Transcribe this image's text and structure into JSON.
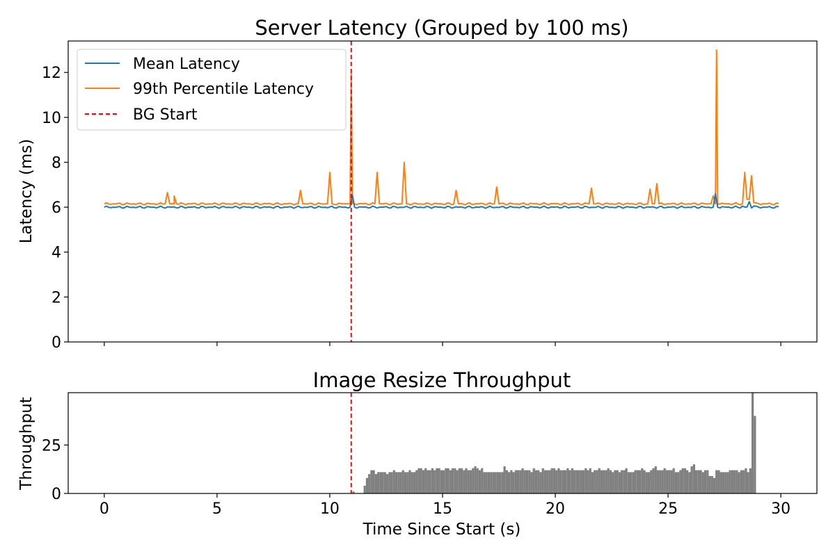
{
  "chart_data": [
    {
      "type": "line",
      "title": "Server Latency (Grouped by 100 ms)",
      "xlabel": "",
      "ylabel": "Latency (ms)",
      "xlim": [
        -1.6,
        31.6
      ],
      "ylim": [
        0,
        13.4
      ],
      "x_ticks": [
        0,
        5,
        10,
        15,
        20,
        25,
        30
      ],
      "y_ticks": [
        0,
        2,
        4,
        6,
        8,
        10,
        12
      ],
      "y_tick_labels": [
        "0",
        "2",
        "4",
        "6",
        "8",
        "10",
        "12"
      ],
      "legend": {
        "position": "top-left",
        "entries": [
          "Mean Latency",
          "99th Percentile Latency",
          "BG Start"
        ]
      },
      "grid": false,
      "colors": {
        "mean": "#1f77b4",
        "p99": "#ff7f0e",
        "bg_start": "#ff0000"
      },
      "x_step": 0.1,
      "x_end": 29.9,
      "series": [
        {
          "name": "Mean Latency",
          "baseline": 6.0,
          "points": [
            [
              10.9,
              6.0
            ],
            [
              11.0,
              6.55
            ],
            [
              11.1,
              6.0
            ],
            [
              27.0,
              6.0
            ],
            [
              27.1,
              6.6
            ],
            [
              27.2,
              6.0
            ],
            [
              28.3,
              6.05
            ],
            [
              28.6,
              6.25
            ],
            [
              28.8,
              6.05
            ]
          ]
        },
        {
          "name": "99th Percentile Latency",
          "baseline": 6.15,
          "points": [
            [
              2.7,
              6.15
            ],
            [
              2.8,
              6.65
            ],
            [
              2.9,
              6.15
            ],
            [
              3.1,
              6.15
            ],
            [
              3.1,
              6.5
            ],
            [
              3.2,
              6.15
            ],
            [
              8.6,
              6.15
            ],
            [
              8.7,
              6.75
            ],
            [
              8.8,
              6.15
            ],
            [
              9.9,
              6.15
            ],
            [
              10.0,
              7.55
            ],
            [
              10.1,
              6.15
            ],
            [
              10.8,
              6.15
            ],
            [
              10.95,
              12.0
            ],
            [
              11.1,
              6.15
            ],
            [
              12.0,
              6.15
            ],
            [
              12.1,
              7.55
            ],
            [
              12.2,
              6.15
            ],
            [
              13.2,
              6.15
            ],
            [
              13.3,
              8.0
            ],
            [
              13.4,
              6.15
            ],
            [
              15.5,
              6.15
            ],
            [
              15.6,
              6.75
            ],
            [
              15.7,
              6.15
            ],
            [
              17.3,
              6.15
            ],
            [
              17.4,
              6.9
            ],
            [
              17.5,
              6.15
            ],
            [
              21.5,
              6.15
            ],
            [
              21.6,
              6.85
            ],
            [
              21.7,
              6.15
            ],
            [
              24.1,
              6.15
            ],
            [
              24.2,
              6.8
            ],
            [
              24.3,
              6.15
            ],
            [
              24.4,
              6.15
            ],
            [
              24.5,
              7.05
            ],
            [
              24.6,
              6.15
            ],
            [
              26.9,
              6.15
            ],
            [
              27.0,
              6.5
            ],
            [
              27.1,
              6.15
            ],
            [
              27.15,
              13.0
            ],
            [
              27.3,
              6.15
            ],
            [
              28.3,
              6.15
            ],
            [
              28.4,
              7.55
            ],
            [
              28.5,
              6.35
            ],
            [
              28.6,
              6.35
            ],
            [
              28.7,
              7.4
            ],
            [
              28.8,
              6.2
            ]
          ]
        }
      ],
      "vline": {
        "name": "BG Start",
        "x": 10.95
      }
    },
    {
      "type": "bar",
      "title": "Image Resize Throughput",
      "xlabel": "Time Since Start (s)",
      "ylabel": "Throughput",
      "xlim": [
        -1.6,
        31.6
      ],
      "ylim": [
        0,
        52
      ],
      "x_ticks": [
        0,
        5,
        10,
        15,
        20,
        25,
        30
      ],
      "x_tick_labels": [
        "0",
        "5",
        "10",
        "15",
        "20",
        "25",
        "30"
      ],
      "y_ticks": [
        0,
        25
      ],
      "y_tick_labels": [
        "0",
        "25"
      ],
      "bar_color": "#808080",
      "bar_width": 0.1,
      "x_start": 11.0,
      "values": [
        1,
        0,
        0,
        0,
        0,
        4,
        8,
        10,
        12,
        12,
        10,
        11,
        11,
        11,
        11,
        10,
        11,
        11,
        12,
        11,
        11,
        11,
        12,
        11,
        11,
        12,
        11,
        11,
        12,
        13,
        13,
        12,
        13,
        12,
        12,
        13,
        12,
        13,
        13,
        12,
        12,
        13,
        13,
        12,
        13,
        13,
        12,
        13,
        13,
        12,
        13,
        12,
        12,
        13,
        14,
        13,
        12,
        13,
        11,
        11,
        11,
        11,
        11,
        11,
        11,
        11,
        11,
        14,
        12,
        11,
        12,
        11,
        12,
        12,
        12,
        13,
        12,
        12,
        12,
        11,
        13,
        12,
        12,
        11,
        13,
        12,
        12,
        12,
        13,
        13,
        12,
        13,
        12,
        12,
        12,
        13,
        12,
        13,
        12,
        12,
        12,
        12,
        12,
        13,
        12,
        13,
        11,
        12,
        12,
        13,
        12,
        12,
        12,
        13,
        12,
        11,
        12,
        12,
        11,
        12,
        12,
        13,
        11,
        11,
        11,
        12,
        12,
        12,
        13,
        12,
        11,
        11,
        12,
        13,
        14,
        12,
        12,
        12,
        13,
        12,
        12,
        12,
        13,
        11,
        11,
        12,
        13,
        13,
        12,
        11,
        14,
        15,
        12,
        12,
        12,
        11,
        12,
        12,
        9,
        9,
        8,
        12,
        12,
        11,
        11,
        11,
        11,
        12,
        12,
        12,
        12,
        11,
        12,
        12,
        13,
        11,
        13,
        52,
        40
      ]
    }
  ]
}
